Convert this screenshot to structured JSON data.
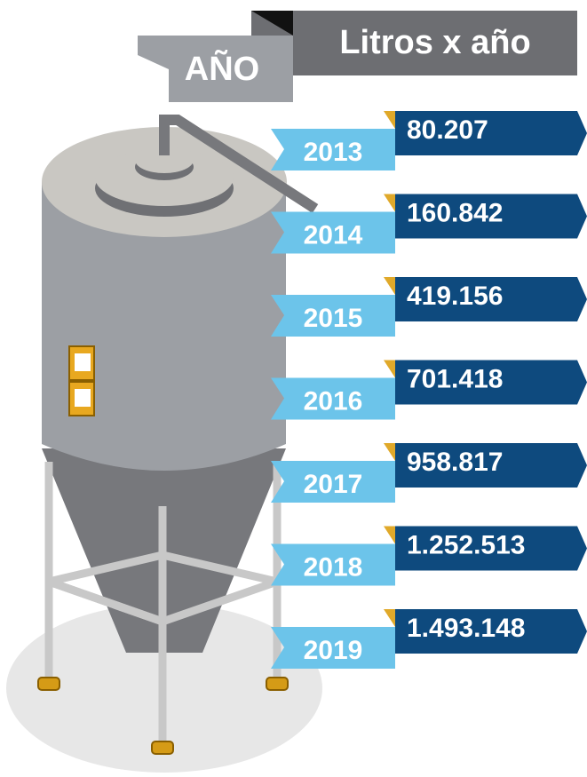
{
  "header": {
    "year_label": "AÑO",
    "value_label": "Litros x año"
  },
  "rows": [
    {
      "year": "2013",
      "liters": "80.207"
    },
    {
      "year": "2014",
      "liters": "160.842"
    },
    {
      "year": "2015",
      "liters": "419.156"
    },
    {
      "year": "2016",
      "liters": "701.418"
    },
    {
      "year": "2017",
      "liters": "958.817"
    },
    {
      "year": "2018",
      "liters": "1.252.513"
    },
    {
      "year": "2019",
      "liters": "1.493.148"
    }
  ]
}
